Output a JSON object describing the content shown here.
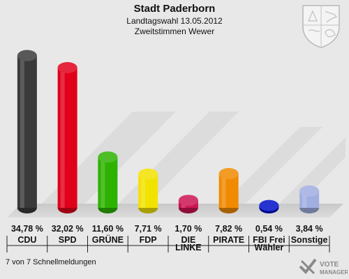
{
  "header": {
    "title": "Stadt Paderborn",
    "subtitle": "Landtagswahl 13.05.2012",
    "subtitle2": "Zweitstimmen Wewer"
  },
  "footer": {
    "note": "7 von 7 Schnellmeldungen"
  },
  "logo": {
    "line1": "VOTE",
    "line2": "MANAGER"
  },
  "chart_data": {
    "type": "bar",
    "categories": [
      "CDU",
      "SPD",
      "GRÜNE",
      "FDP",
      "DIE LINKE",
      "PIRATE",
      "FBI Frei Wähler",
      "Sonstige"
    ],
    "category_lines": [
      [
        "CDU"
      ],
      [
        "SPD"
      ],
      [
        "GRÜNE"
      ],
      [
        "FDP"
      ],
      [
        "DIE",
        "LINKE"
      ],
      [
        "PIRATE"
      ],
      [
        "FBI Frei",
        "Wähler"
      ],
      [
        "Sonstige"
      ]
    ],
    "values": [
      34.78,
      32.02,
      11.6,
      7.71,
      1.7,
      7.82,
      0.54,
      3.84
    ],
    "value_labels": [
      "34,78 %",
      "32,02 %",
      "11,60 %",
      "7,71 %",
      "1,70 %",
      "7,82 %",
      "0,54 %",
      "3,84 %"
    ],
    "colors": [
      "#3a3a3a",
      "#e0001b",
      "#2db200",
      "#f2e200",
      "#cc1452",
      "#f08a00",
      "#0010c8",
      "#a0aee0"
    ],
    "ylim": [
      0,
      36
    ]
  }
}
